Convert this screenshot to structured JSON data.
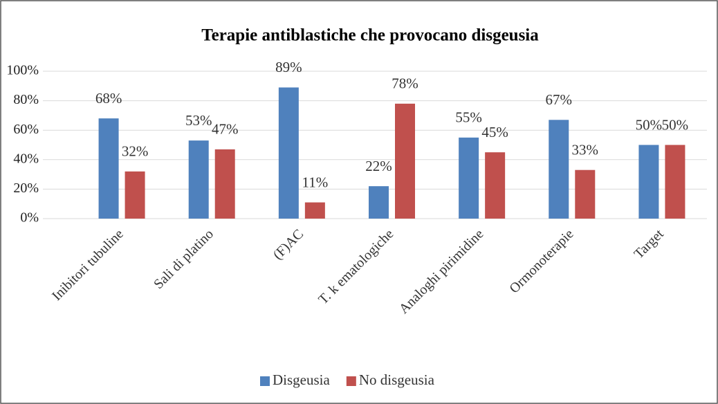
{
  "chart_data": {
    "type": "bar",
    "title": "Terapie antiblastiche che provocano disgeusia",
    "categories": [
      "Inibitori tubuline",
      "Sali di platino",
      "(F)AC",
      "T. k ematologiche",
      "Analoghi pirimidine",
      "Ormonoterapie",
      "Target"
    ],
    "series": [
      {
        "name": "Disgeusia",
        "color": "#4f81bd",
        "values": [
          68,
          53,
          89,
          22,
          55,
          67,
          50
        ],
        "value_labels": [
          "68%",
          "53%",
          "89%",
          "22%",
          "55%",
          "67%",
          "50%"
        ]
      },
      {
        "name": "No disgeusia",
        "color": "#c0504d",
        "values": [
          32,
          47,
          11,
          78,
          45,
          33,
          50
        ],
        "value_labels": [
          "32%",
          "47%",
          "11%",
          "78%",
          "45%",
          "33%",
          "50%"
        ]
      }
    ],
    "ylim": [
      0,
      100
    ],
    "yticks": [
      {
        "value": 0,
        "label": "0%"
      },
      {
        "value": 20,
        "label": "20%"
      },
      {
        "value": 40,
        "label": "40%"
      },
      {
        "value": 60,
        "label": "60%"
      },
      {
        "value": 80,
        "label": "80%"
      },
      {
        "value": 100,
        "label": "100%"
      }
    ],
    "grid": true,
    "legend": "bottom"
  }
}
